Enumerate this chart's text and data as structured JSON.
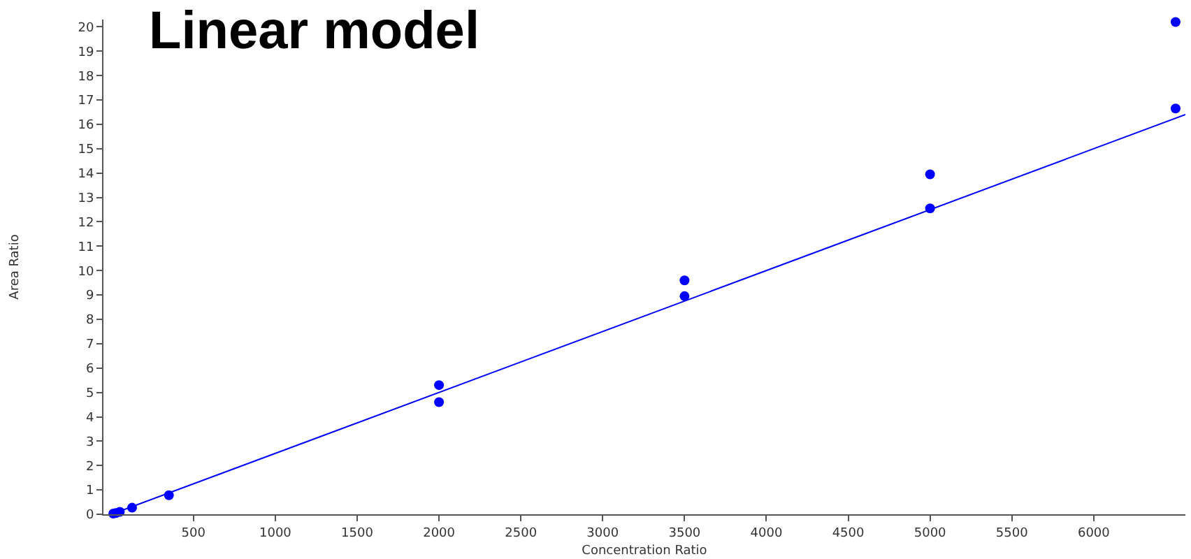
{
  "chart_data": {
    "type": "scatter",
    "title": "Linear model",
    "xlabel": "Concentration Ratio",
    "ylabel": "Area Ratio",
    "xlim": [
      -50,
      6560
    ],
    "ylim": [
      0,
      20.3
    ],
    "xticks": [
      500,
      1000,
      1500,
      2000,
      2500,
      3000,
      3500,
      4000,
      4500,
      5000,
      5500,
      6000
    ],
    "yticks": [
      0,
      1,
      2,
      3,
      4,
      5,
      6,
      7,
      8,
      9,
      10,
      11,
      12,
      13,
      14,
      15,
      16,
      17,
      18,
      19,
      20
    ],
    "grid": false,
    "series": [
      {
        "type": "line",
        "marker": "none",
        "color": "#0000ff",
        "x": [
          0,
          6560
        ],
        "values": [
          0,
          16.4
        ]
      },
      {
        "marker": "circle",
        "color": "#0000ff",
        "x": [
          10,
          25,
          50,
          125,
          350,
          2000,
          2000,
          3500,
          3500,
          5000,
          5000,
          6500
        ],
        "values": [
          0.03,
          0.05,
          0.1,
          0.27,
          0.78,
          5.3,
          4.6,
          9.6,
          8.95,
          13.95,
          12.55,
          16.65
        ]
      },
      {
        "marker": "circle",
        "color": "#0000ff",
        "x": [
          6500
        ],
        "values": [
          20.2
        ]
      }
    ]
  }
}
